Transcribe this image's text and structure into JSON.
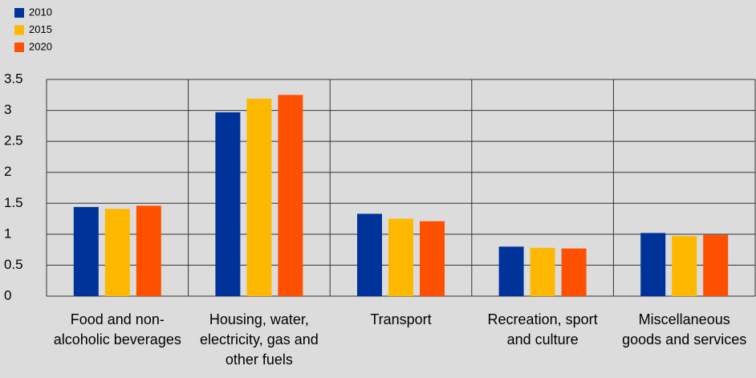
{
  "chart_data": {
    "type": "bar",
    "categories": [
      "Food and non-alcoholic beverages",
      "Housing, water, electricity, gas and other fuels",
      "Transport",
      "Recreation, sport and culture",
      "Miscellaneous goods and services"
    ],
    "series": [
      {
        "name": "2010",
        "color": "#003399",
        "values": [
          1.44,
          2.97,
          1.33,
          0.8,
          1.02
        ]
      },
      {
        "name": "2015",
        "color": "#ffb800",
        "values": [
          1.41,
          3.19,
          1.25,
          0.78,
          0.97
        ]
      },
      {
        "name": "2020",
        "color": "#ff5000",
        "values": [
          1.46,
          3.25,
          1.21,
          0.77,
          0.99
        ]
      }
    ],
    "ylim": [
      0,
      3.5
    ],
    "yticks": [
      0,
      0.5,
      1,
      1.5,
      2,
      2.5,
      3,
      3.5
    ],
    "grid": true,
    "legend": "top-left"
  }
}
